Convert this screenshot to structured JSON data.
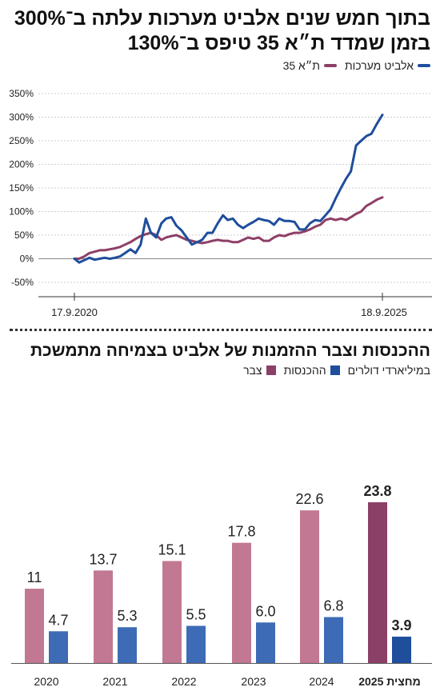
{
  "line_chart": {
    "title": "בתוך חמש שנים אלביט מערכות עלתה ב־300% בזמן שמדד ת״א 35 טיפס ב־130%",
    "legend": {
      "elbit_label": "אלביט מערכות",
      "ta35_label": "ת״א 35"
    },
    "start_date_label": "17.9.2020",
    "end_date_label": "18.9.2025"
  },
  "bar_chart": {
    "title": "ההכנסות וצבר ההזמנות של אלביט בצמיחה מתמשכת",
    "legend": {
      "unit_label": "במיליארדי דולרים",
      "revenue_label": "ההכנסות",
      "backlog_label": "צבר"
    }
  },
  "colors": {
    "elbit_line": "#1f4e9c",
    "ta35_line": "#8e3f66",
    "backlog_bar": "#c27892",
    "revenue_bar": "#3e6bb5",
    "forecast_backlog_bar": "#8b4068",
    "forecast_revenue_bar": "#1f4e9c"
  },
  "chart_data": [
    {
      "type": "line",
      "title": "בתוך חמש שנים אלביט מערכות עלתה ב־300% בזמן שמדד ת״א 35 טיפס ב־130%",
      "x_range": [
        "17.9.2020",
        "18.9.2025"
      ],
      "x_tick_labels": [
        "17.9.2020",
        "18.9.2025"
      ],
      "y_ticks": [
        "-50%",
        "0%",
        "50%",
        "100%",
        "150%",
        "200%",
        "250%",
        "300%",
        "350%"
      ],
      "ylim": [
        -50,
        350
      ],
      "grid": true,
      "legend_position": "top-right",
      "series": [
        {
          "name": "אלביט מערכות",
          "x": [
            "2020-09-17",
            "2020-10-15",
            "2020-11-15",
            "2020-12-15",
            "2021-01-15",
            "2021-02-15",
            "2021-03-15",
            "2021-04-15",
            "2021-05-15",
            "2021-06-15",
            "2021-07-15",
            "2021-08-15",
            "2021-09-15",
            "2021-10-15",
            "2021-11-15",
            "2021-12-15",
            "2022-01-15",
            "2022-02-15",
            "2022-03-15",
            "2022-04-15",
            "2022-05-15",
            "2022-06-15",
            "2022-07-15",
            "2022-08-15",
            "2022-09-15",
            "2022-10-15",
            "2022-11-15",
            "2022-12-15",
            "2023-01-15",
            "2023-02-15",
            "2023-03-15",
            "2023-04-15",
            "2023-05-15",
            "2023-06-15",
            "2023-07-15",
            "2023-08-15",
            "2023-09-15",
            "2023-10-15",
            "2023-11-15",
            "2023-12-15",
            "2024-01-15",
            "2024-02-15",
            "2024-03-15",
            "2024-04-15",
            "2024-05-15",
            "2024-06-15",
            "2024-07-15",
            "2024-08-15",
            "2024-09-15",
            "2024-10-15",
            "2024-11-15",
            "2024-12-15",
            "2025-01-15",
            "2025-02-15",
            "2025-03-15",
            "2025-04-15",
            "2025-05-15",
            "2025-06-15",
            "2025-07-15",
            "2025-08-15",
            "2025-09-18"
          ],
          "values": [
            0,
            -8,
            -3,
            2,
            -2,
            0,
            2,
            0,
            2,
            5,
            12,
            20,
            12,
            30,
            85,
            55,
            45,
            75,
            85,
            88,
            70,
            60,
            45,
            30,
            35,
            40,
            55,
            55,
            75,
            92,
            82,
            85,
            72,
            65,
            72,
            78,
            85,
            82,
            80,
            72,
            85,
            80,
            80,
            78,
            62,
            62,
            75,
            82,
            80,
            92,
            105,
            128,
            150,
            170,
            185,
            240,
            250,
            260,
            265,
            285,
            305
          ]
        },
        {
          "name": "ת״א 35",
          "x": [
            "2020-09-17",
            "2020-10-15",
            "2020-11-15",
            "2020-12-15",
            "2021-01-15",
            "2021-02-15",
            "2021-03-15",
            "2021-04-15",
            "2021-05-15",
            "2021-06-15",
            "2021-07-15",
            "2021-08-15",
            "2021-09-15",
            "2021-10-15",
            "2021-11-15",
            "2021-12-15",
            "2022-01-15",
            "2022-02-15",
            "2022-03-15",
            "2022-04-15",
            "2022-05-15",
            "2022-06-15",
            "2022-07-15",
            "2022-08-15",
            "2022-09-15",
            "2022-10-15",
            "2022-11-15",
            "2022-12-15",
            "2023-01-15",
            "2023-02-15",
            "2023-03-15",
            "2023-04-15",
            "2023-05-15",
            "2023-06-15",
            "2023-07-15",
            "2023-08-15",
            "2023-09-15",
            "2023-10-15",
            "2023-11-15",
            "2023-12-15",
            "2024-01-15",
            "2024-02-15",
            "2024-03-15",
            "2024-04-15",
            "2024-05-15",
            "2024-06-15",
            "2024-07-15",
            "2024-08-15",
            "2024-09-15",
            "2024-10-15",
            "2024-11-15",
            "2024-12-15",
            "2025-01-15",
            "2025-02-15",
            "2025-03-15",
            "2025-04-15",
            "2025-05-15",
            "2025-06-15",
            "2025-07-15",
            "2025-08-15",
            "2025-09-18"
          ],
          "values": [
            0,
            0,
            5,
            12,
            15,
            18,
            18,
            20,
            22,
            25,
            30,
            35,
            42,
            48,
            52,
            55,
            50,
            40,
            45,
            48,
            50,
            45,
            40,
            38,
            35,
            33,
            35,
            38,
            40,
            38,
            38,
            35,
            35,
            40,
            45,
            42,
            45,
            38,
            38,
            45,
            50,
            48,
            52,
            55,
            55,
            58,
            62,
            68,
            72,
            82,
            85,
            82,
            85,
            82,
            88,
            95,
            100,
            112,
            118,
            125,
            130
          ]
        }
      ]
    },
    {
      "type": "bar",
      "title": "ההכנסות וצבר ההזמנות של אלביט בצמיחה מתמשכת",
      "unit": "במיליארדי דולרים",
      "categories": [
        "2020",
        "2021",
        "2022",
        "2023",
        "2024",
        "מחצית 2025"
      ],
      "legend_position": "top-right",
      "grid": false,
      "series": [
        {
          "name": "צבר",
          "values": [
            11,
            13.7,
            15.1,
            17.8,
            22.6,
            23.8
          ],
          "labels": [
            "11",
            "13.7",
            "15.1",
            "17.8",
            "22.6",
            "23.8"
          ]
        },
        {
          "name": "ההכנסות",
          "values": [
            4.7,
            5.3,
            5.5,
            6.0,
            6.8,
            3.9
          ],
          "labels": [
            "4.7",
            "5.3",
            "5.5",
            "6.0",
            "6.8",
            "3.9"
          ]
        }
      ]
    }
  ]
}
